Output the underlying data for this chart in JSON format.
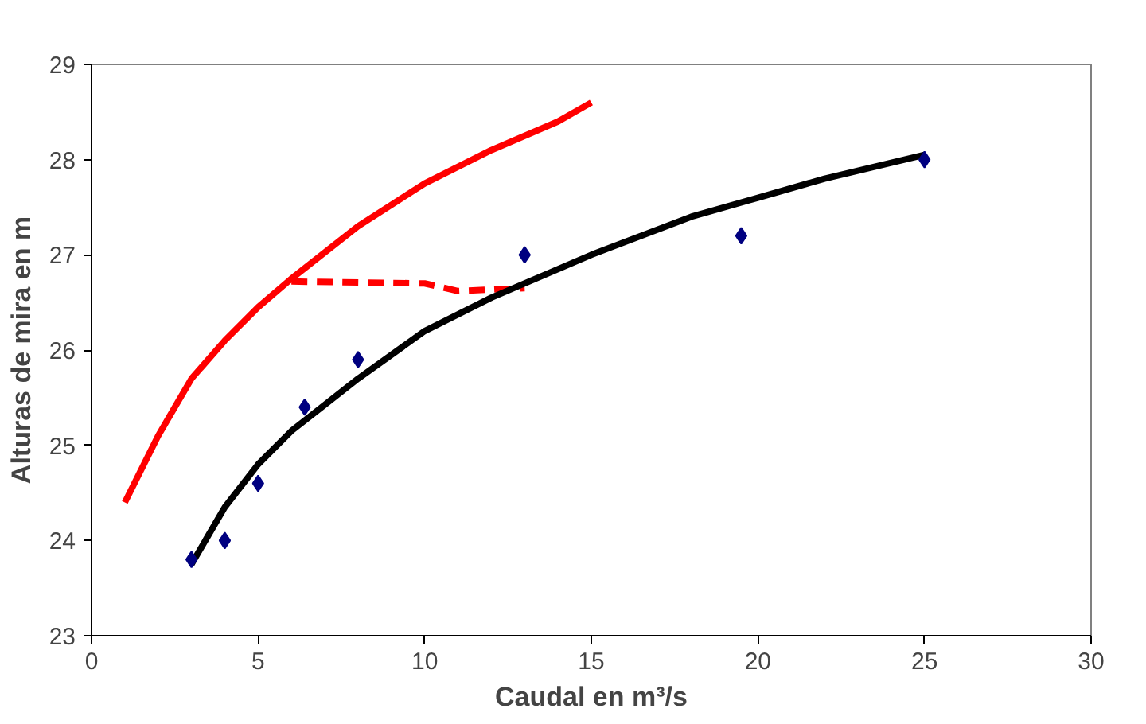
{
  "chart_data": {
    "type": "scatter",
    "xlabel": "Caudal en m³/s",
    "ylabel": "Alturas de mira en m",
    "xlim": [
      0,
      30
    ],
    "ylim": [
      23,
      29
    ],
    "xticks": [
      0,
      5,
      10,
      15,
      20,
      25,
      30
    ],
    "yticks": [
      23,
      24,
      25,
      26,
      27,
      28,
      29
    ],
    "grid": false,
    "series": [
      {
        "type": "line",
        "color": "#ff0000",
        "line_style": "solid",
        "x": [
          1,
          2,
          3,
          4,
          5,
          6,
          8,
          10,
          12,
          14,
          15
        ],
        "values": [
          24.4,
          25.1,
          25.7,
          26.1,
          26.45,
          26.75,
          27.3,
          27.75,
          28.1,
          28.4,
          28.6
        ]
      },
      {
        "type": "line",
        "color": "#ff0000",
        "line_style": "dashed",
        "x": [
          6,
          10,
          11,
          13
        ],
        "values": [
          26.72,
          26.7,
          26.62,
          26.65
        ]
      },
      {
        "type": "line",
        "color": "#000000",
        "line_style": "solid",
        "x": [
          3,
          4,
          5,
          6,
          8,
          10,
          12,
          15,
          18,
          20,
          22,
          25
        ],
        "values": [
          23.75,
          24.35,
          24.8,
          25.15,
          25.7,
          26.2,
          26.55,
          27.0,
          27.4,
          27.6,
          27.8,
          28.05
        ]
      },
      {
        "color": "#000080",
        "marker": "diamond",
        "x": [
          3,
          4,
          5,
          6.4,
          8,
          13,
          19.5,
          25
        ],
        "values": [
          23.8,
          24.0,
          24.6,
          25.4,
          25.9,
          27.0,
          27.2,
          28.0
        ]
      }
    ]
  }
}
